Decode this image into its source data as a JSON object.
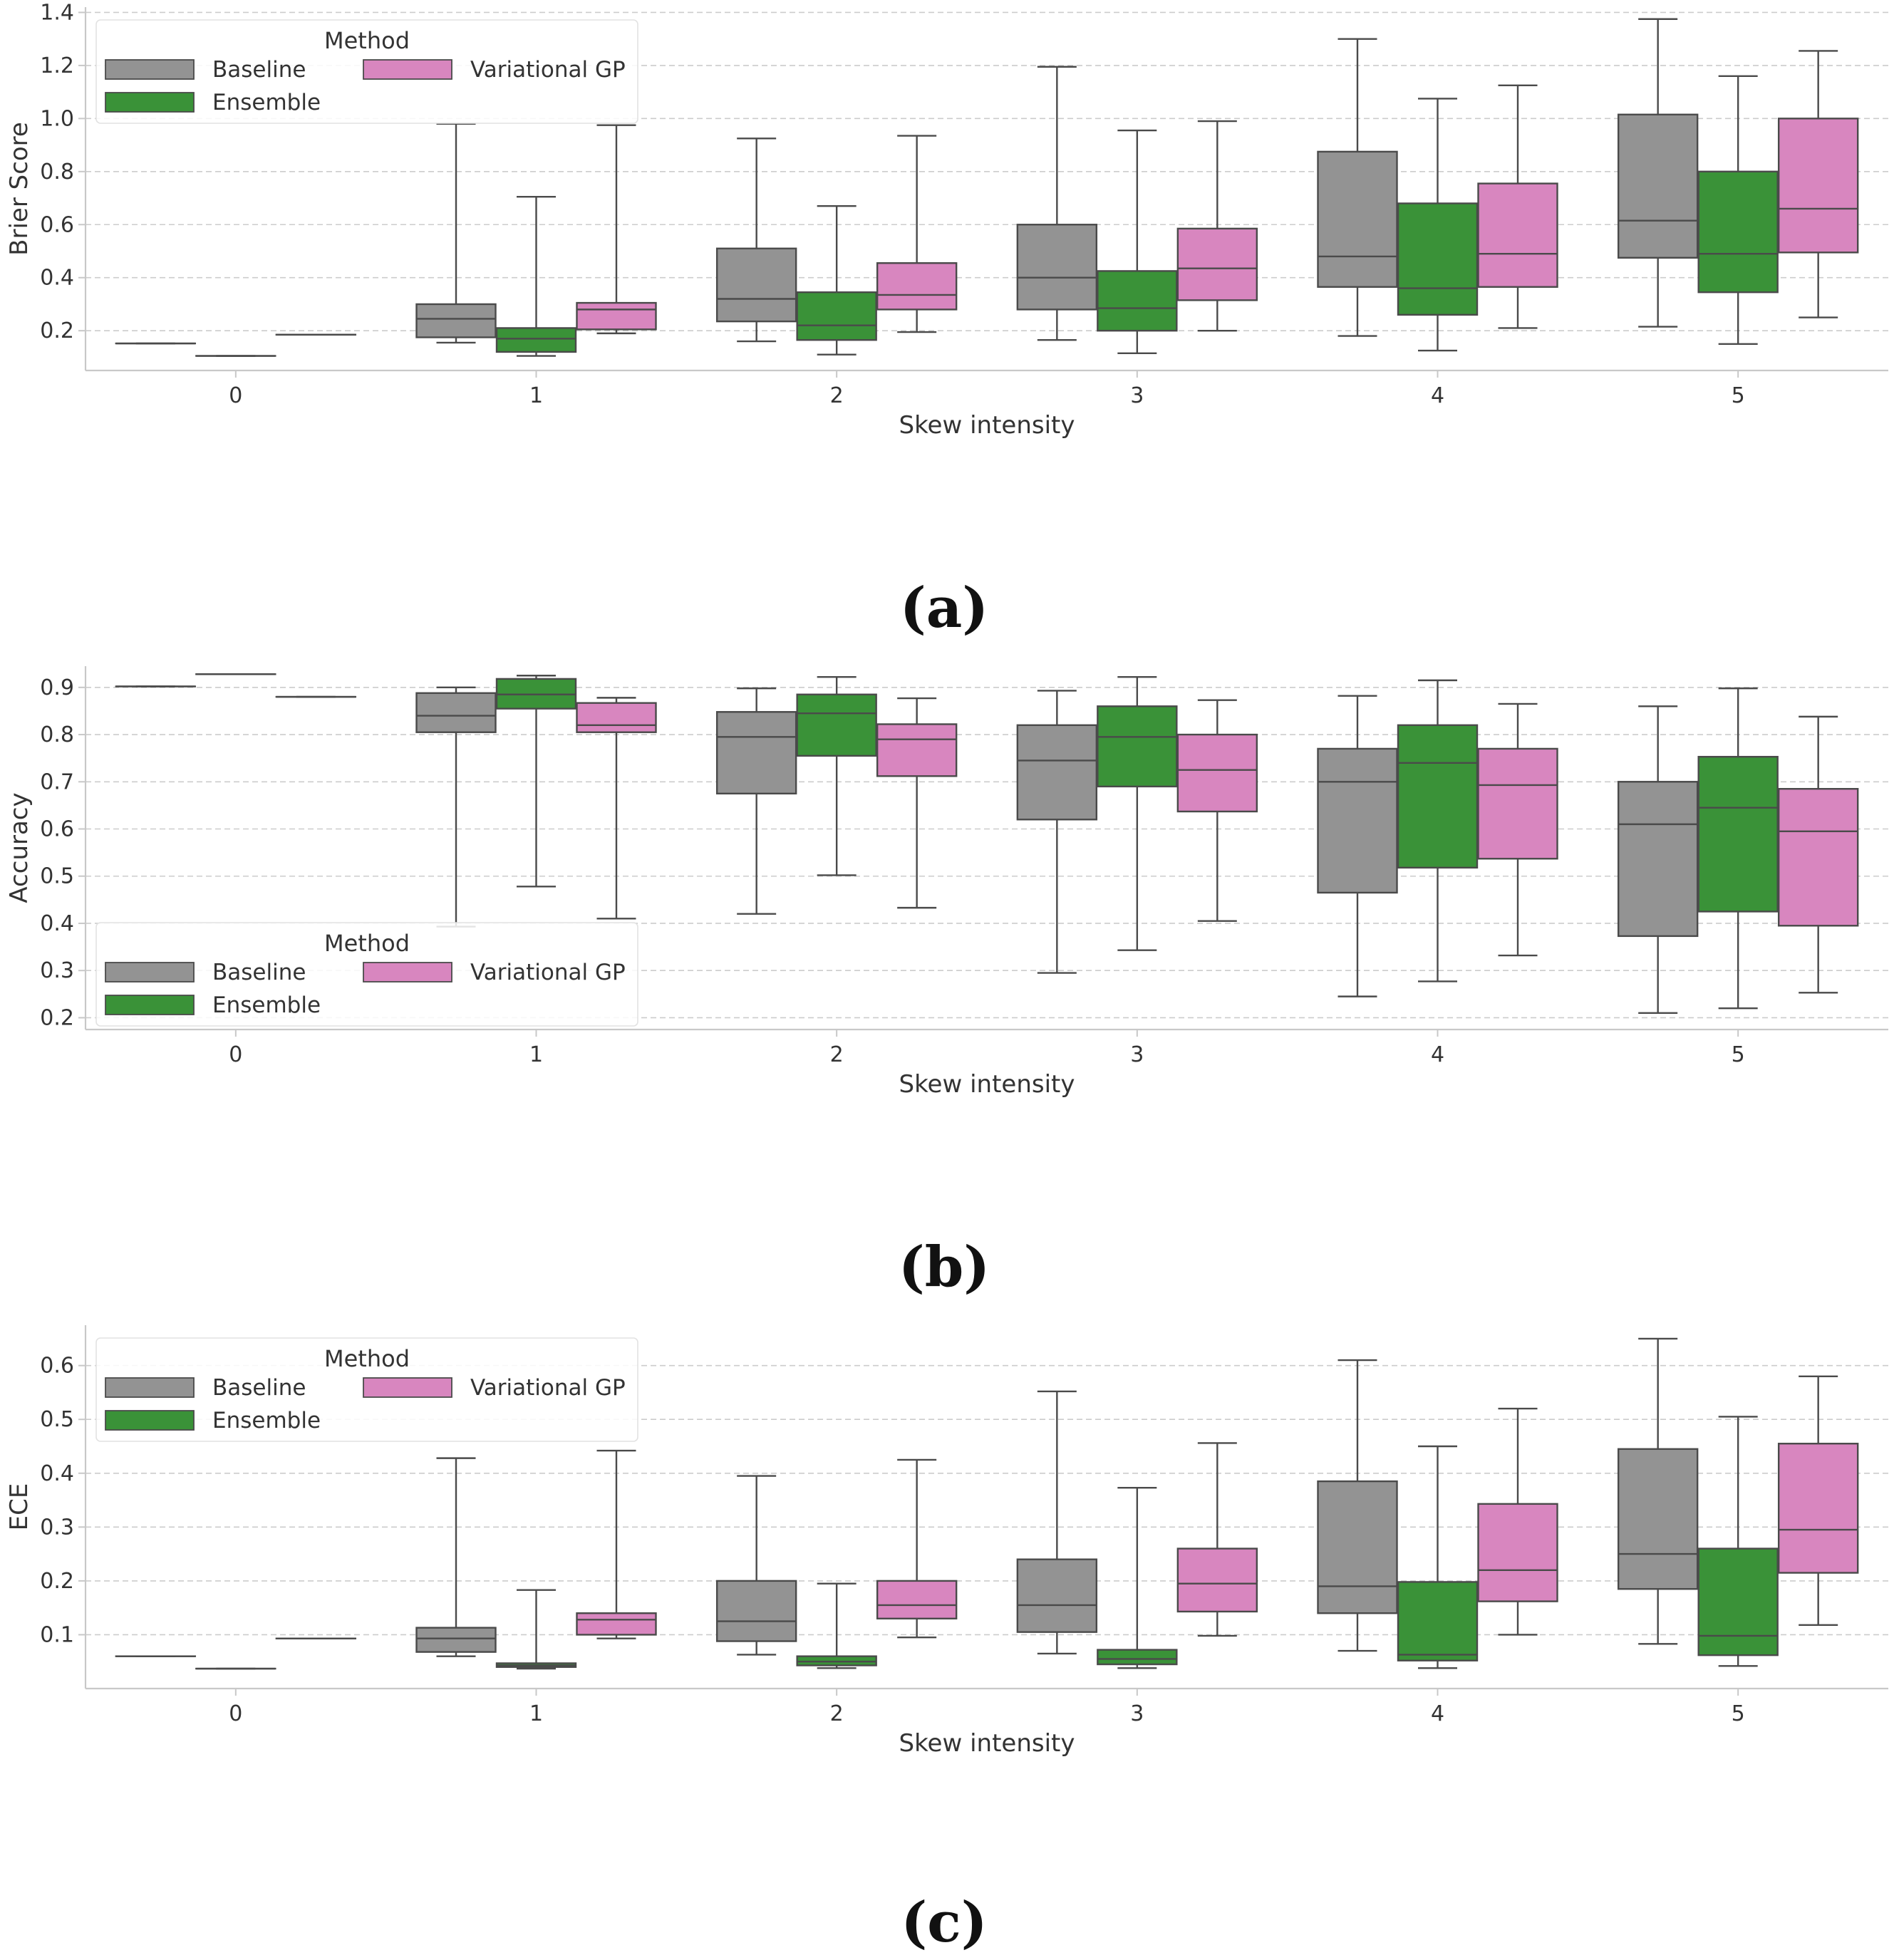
{
  "colors": {
    "baseline": "#939393",
    "ensemble": "#3a9238",
    "variational_gp": "#d886bf",
    "line": "#4a4a4a",
    "grid": "#cccccc",
    "spine": "#c8c8c8"
  },
  "legend": {
    "title": "Method",
    "entries": [
      "Baseline",
      "Ensemble",
      "Variational GP"
    ]
  },
  "chart_data": [
    {
      "type": "box",
      "panel_label": "(a)",
      "xlabel": "Skew intensity",
      "ylabel": "Brier Score",
      "categories": [
        "0",
        "1",
        "2",
        "3",
        "4",
        "5"
      ],
      "ylim": [
        0.05,
        1.42
      ],
      "yticks": [
        0.2,
        0.4,
        0.6,
        0.8,
        1.0,
        1.2,
        1.4
      ],
      "ytick_labels": [
        "0.2",
        "0.4",
        "0.6",
        "0.8",
        "1.0",
        "1.2",
        "1.4"
      ],
      "grid": true,
      "legend_position": "upper-left",
      "series": [
        {
          "name": "Baseline",
          "boxes": [
            {
              "min": 0.152,
              "q1": 0.152,
              "median": 0.152,
              "q3": 0.152,
              "max": 0.152
            },
            {
              "min": 0.155,
              "q1": 0.175,
              "median": 0.245,
              "q3": 0.3,
              "max": 0.98
            },
            {
              "min": 0.16,
              "q1": 0.235,
              "median": 0.32,
              "q3": 0.51,
              "max": 0.925
            },
            {
              "min": 0.165,
              "q1": 0.28,
              "median": 0.4,
              "q3": 0.6,
              "max": 1.195
            },
            {
              "min": 0.18,
              "q1": 0.365,
              "median": 0.48,
              "q3": 0.875,
              "max": 1.3
            },
            {
              "min": 0.215,
              "q1": 0.475,
              "median": 0.615,
              "q3": 1.015,
              "max": 1.375
            }
          ]
        },
        {
          "name": "Ensemble",
          "boxes": [
            {
              "min": 0.105,
              "q1": 0.105,
              "median": 0.105,
              "q3": 0.105,
              "max": 0.105
            },
            {
              "min": 0.105,
              "q1": 0.12,
              "median": 0.17,
              "q3": 0.21,
              "max": 0.705
            },
            {
              "min": 0.11,
              "q1": 0.165,
              "median": 0.22,
              "q3": 0.345,
              "max": 0.67
            },
            {
              "min": 0.115,
              "q1": 0.2,
              "median": 0.285,
              "q3": 0.425,
              "max": 0.955
            },
            {
              "min": 0.125,
              "q1": 0.26,
              "median": 0.36,
              "q3": 0.68,
              "max": 1.075
            },
            {
              "min": 0.15,
              "q1": 0.345,
              "median": 0.49,
              "q3": 0.8,
              "max": 1.16
            }
          ]
        },
        {
          "name": "Variational GP",
          "boxes": [
            {
              "min": 0.185,
              "q1": 0.185,
              "median": 0.185,
              "q3": 0.185,
              "max": 0.185
            },
            {
              "min": 0.19,
              "q1": 0.205,
              "median": 0.28,
              "q3": 0.305,
              "max": 0.975
            },
            {
              "min": 0.195,
              "q1": 0.28,
              "median": 0.335,
              "q3": 0.455,
              "max": 0.935
            },
            {
              "min": 0.2,
              "q1": 0.315,
              "median": 0.435,
              "q3": 0.585,
              "max": 0.99
            },
            {
              "min": 0.21,
              "q1": 0.365,
              "median": 0.49,
              "q3": 0.755,
              "max": 1.125
            },
            {
              "min": 0.25,
              "q1": 0.495,
              "median": 0.66,
              "q3": 1.0,
              "max": 1.255
            }
          ]
        }
      ]
    },
    {
      "type": "box",
      "panel_label": "(b)",
      "xlabel": "Skew intensity",
      "ylabel": "Accuracy",
      "categories": [
        "0",
        "1",
        "2",
        "3",
        "4",
        "5"
      ],
      "ylim": [
        0.175,
        0.945
      ],
      "yticks": [
        0.2,
        0.3,
        0.4,
        0.5,
        0.6,
        0.7,
        0.8,
        0.9
      ],
      "ytick_labels": [
        "0.2",
        "0.3",
        "0.4",
        "0.5",
        "0.6",
        "0.7",
        "0.8",
        "0.9"
      ],
      "grid": true,
      "legend_position": "lower-left",
      "series": [
        {
          "name": "Baseline",
          "boxes": [
            {
              "min": 0.902,
              "q1": 0.902,
              "median": 0.902,
              "q3": 0.902,
              "max": 0.902
            },
            {
              "min": 0.393,
              "q1": 0.805,
              "median": 0.84,
              "q3": 0.888,
              "max": 0.9
            },
            {
              "min": 0.42,
              "q1": 0.675,
              "median": 0.795,
              "q3": 0.848,
              "max": 0.898
            },
            {
              "min": 0.295,
              "q1": 0.62,
              "median": 0.745,
              "q3": 0.82,
              "max": 0.893
            },
            {
              "min": 0.245,
              "q1": 0.465,
              "median": 0.7,
              "q3": 0.77,
              "max": 0.882
            },
            {
              "min": 0.21,
              "q1": 0.373,
              "median": 0.61,
              "q3": 0.7,
              "max": 0.86
            }
          ]
        },
        {
          "name": "Ensemble",
          "boxes": [
            {
              "min": 0.928,
              "q1": 0.928,
              "median": 0.928,
              "q3": 0.928,
              "max": 0.928
            },
            {
              "min": 0.478,
              "q1": 0.855,
              "median": 0.885,
              "q3": 0.918,
              "max": 0.925
            },
            {
              "min": 0.502,
              "q1": 0.755,
              "median": 0.845,
              "q3": 0.885,
              "max": 0.922
            },
            {
              "min": 0.343,
              "q1": 0.69,
              "median": 0.795,
              "q3": 0.86,
              "max": 0.922
            },
            {
              "min": 0.277,
              "q1": 0.518,
              "median": 0.74,
              "q3": 0.82,
              "max": 0.915
            },
            {
              "min": 0.22,
              "q1": 0.425,
              "median": 0.645,
              "q3": 0.753,
              "max": 0.898
            }
          ]
        },
        {
          "name": "Variational GP",
          "boxes": [
            {
              "min": 0.88,
              "q1": 0.88,
              "median": 0.88,
              "q3": 0.88,
              "max": 0.88
            },
            {
              "min": 0.41,
              "q1": 0.805,
              "median": 0.82,
              "q3": 0.867,
              "max": 0.878
            },
            {
              "min": 0.433,
              "q1": 0.712,
              "median": 0.79,
              "q3": 0.822,
              "max": 0.877
            },
            {
              "min": 0.405,
              "q1": 0.637,
              "median": 0.725,
              "q3": 0.8,
              "max": 0.873
            },
            {
              "min": 0.332,
              "q1": 0.537,
              "median": 0.693,
              "q3": 0.77,
              "max": 0.865
            },
            {
              "min": 0.253,
              "q1": 0.395,
              "median": 0.595,
              "q3": 0.685,
              "max": 0.838
            }
          ]
        }
      ]
    },
    {
      "type": "box",
      "panel_label": "(c)",
      "xlabel": "Skew intensity",
      "ylabel": "ECE",
      "categories": [
        "0",
        "1",
        "2",
        "3",
        "4",
        "5"
      ],
      "ylim": [
        0.0,
        0.675
      ],
      "yticks": [
        0.1,
        0.2,
        0.3,
        0.4,
        0.5,
        0.6
      ],
      "ytick_labels": [
        "0.1",
        "0.2",
        "0.3",
        "0.4",
        "0.5",
        "0.6"
      ],
      "grid": true,
      "legend_position": "upper-left",
      "series": [
        {
          "name": "Baseline",
          "boxes": [
            {
              "min": 0.06,
              "q1": 0.06,
              "median": 0.06,
              "q3": 0.06,
              "max": 0.06
            },
            {
              "min": 0.06,
              "q1": 0.068,
              "median": 0.093,
              "q3": 0.113,
              "max": 0.428
            },
            {
              "min": 0.063,
              "q1": 0.088,
              "median": 0.125,
              "q3": 0.2,
              "max": 0.395
            },
            {
              "min": 0.065,
              "q1": 0.105,
              "median": 0.155,
              "q3": 0.24,
              "max": 0.552
            },
            {
              "min": 0.07,
              "q1": 0.14,
              "median": 0.19,
              "q3": 0.385,
              "max": 0.61
            },
            {
              "min": 0.083,
              "q1": 0.185,
              "median": 0.25,
              "q3": 0.445,
              "max": 0.65
            }
          ]
        },
        {
          "name": "Ensemble",
          "boxes": [
            {
              "min": 0.037,
              "q1": 0.037,
              "median": 0.037,
              "q3": 0.037,
              "max": 0.037
            },
            {
              "min": 0.037,
              "q1": 0.04,
              "median": 0.043,
              "q3": 0.047,
              "max": 0.183
            },
            {
              "min": 0.038,
              "q1": 0.043,
              "median": 0.05,
              "q3": 0.06,
              "max": 0.195
            },
            {
              "min": 0.038,
              "q1": 0.045,
              "median": 0.055,
              "q3": 0.072,
              "max": 0.373
            },
            {
              "min": 0.038,
              "q1": 0.052,
              "median": 0.063,
              "q3": 0.198,
              "max": 0.45
            },
            {
              "min": 0.042,
              "q1": 0.062,
              "median": 0.098,
              "q3": 0.26,
              "max": 0.505
            }
          ]
        },
        {
          "name": "Variational GP",
          "boxes": [
            {
              "min": 0.093,
              "q1": 0.093,
              "median": 0.093,
              "q3": 0.093,
              "max": 0.093
            },
            {
              "min": 0.093,
              "q1": 0.1,
              "median": 0.128,
              "q3": 0.14,
              "max": 0.442
            },
            {
              "min": 0.095,
              "q1": 0.13,
              "median": 0.155,
              "q3": 0.2,
              "max": 0.425
            },
            {
              "min": 0.098,
              "q1": 0.143,
              "median": 0.195,
              "q3": 0.26,
              "max": 0.456
            },
            {
              "min": 0.1,
              "q1": 0.162,
              "median": 0.22,
              "q3": 0.343,
              "max": 0.52
            },
            {
              "min": 0.118,
              "q1": 0.215,
              "median": 0.295,
              "q3": 0.455,
              "max": 0.58
            }
          ]
        }
      ]
    }
  ]
}
